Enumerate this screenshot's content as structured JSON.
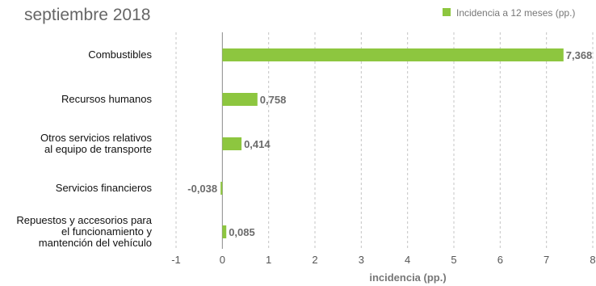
{
  "chart_data": {
    "type": "bar",
    "orientation": "horizontal",
    "subtitle": "septiembre 2018",
    "categories": [
      "Combustibles",
      "Recursos humanos",
      "Otros servicios relativos al equipo de transporte",
      "Servicios financieros",
      "Repuestos y accesorios para el funcionamiento y mantención del vehículo"
    ],
    "category_lines": [
      [
        "Combustibles"
      ],
      [
        "Recursos humanos"
      ],
      [
        "Otros servicios relativos",
        "al equipo de transporte"
      ],
      [
        "Servicios financieros"
      ],
      [
        "Repuestos y accesorios para",
        "el funcionamiento y",
        "mantención del vehículo"
      ]
    ],
    "series": [
      {
        "name": "Incidencia a 12 meses (pp.)",
        "values": [
          7.368,
          0.758,
          0.414,
          -0.038,
          0.085
        ],
        "labels": [
          "7,368",
          "0,758",
          "0,414",
          "-0,038",
          "0,085"
        ],
        "color": "#8dc63f"
      }
    ],
    "xlabel": "incidencia (pp.)",
    "xlim": [
      -1,
      8
    ],
    "xticks": [
      -1,
      0,
      1,
      2,
      3,
      4,
      5,
      6,
      7,
      8
    ],
    "grid": "vertical-dashed",
    "legend_position": "top-right"
  }
}
